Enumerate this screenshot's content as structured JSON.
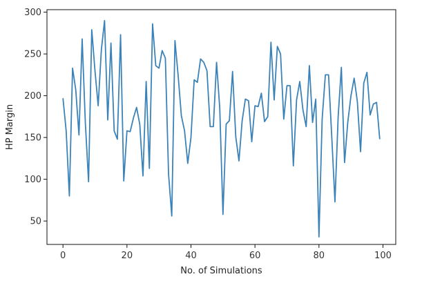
{
  "chart_data": {
    "type": "line",
    "title": "",
    "xlabel": "No. of Simulations",
    "ylabel": "HP Margin",
    "xlim": [
      -5,
      104
    ],
    "ylim": [
      22,
      303
    ],
    "xticks": [
      0,
      20,
      40,
      60,
      80,
      100
    ],
    "yticks": [
      50,
      100,
      150,
      200,
      250,
      300
    ],
    "grid": false,
    "line_color": "#3b82b8",
    "series": [
      {
        "x": [
          0,
          1,
          2,
          3,
          4,
          5,
          6,
          7,
          8,
          9,
          10,
          11,
          12,
          13,
          14,
          15,
          16,
          17,
          18,
          19,
          20,
          21,
          22,
          23,
          24,
          25,
          26,
          27,
          28,
          29,
          30,
          31,
          32,
          33,
          34,
          35,
          36,
          37,
          38,
          39,
          40,
          41,
          42,
          43,
          44,
          45,
          46,
          47,
          48,
          49,
          50,
          51,
          52,
          53,
          54,
          55,
          56,
          57,
          58,
          59,
          60,
          61,
          62,
          63,
          64,
          65,
          66,
          67,
          68,
          69,
          70,
          71,
          72,
          73,
          74,
          75,
          76,
          77,
          78,
          79,
          80,
          81,
          82,
          83,
          84,
          85,
          86,
          87,
          88,
          89,
          90,
          91,
          92,
          93,
          94,
          95,
          96,
          97,
          98,
          99
        ],
        "values": [
          197,
          158,
          80,
          233,
          207,
          153,
          268,
          167,
          97,
          279,
          230,
          188,
          255,
          290,
          171,
          263,
          158,
          148,
          273,
          98,
          158,
          157,
          173,
          186,
          166,
          104,
          217,
          113,
          286,
          236,
          233,
          254,
          245,
          106,
          56,
          266,
          224,
          176,
          158,
          119,
          150,
          219,
          216,
          244,
          240,
          230,
          163,
          163,
          240,
          185,
          58,
          166,
          170,
          229,
          151,
          122,
          170,
          196,
          194,
          145,
          188,
          187,
          203,
          169,
          175,
          264,
          195,
          259,
          250,
          172,
          212,
          212,
          116,
          195,
          217,
          183,
          163,
          236,
          168,
          196,
          31,
          172,
          225,
          225,
          151,
          73,
          175,
          234,
          120,
          168,
          200,
          221,
          193,
          133,
          215,
          228,
          177,
          190,
          192,
          148
        ]
      }
    ]
  }
}
